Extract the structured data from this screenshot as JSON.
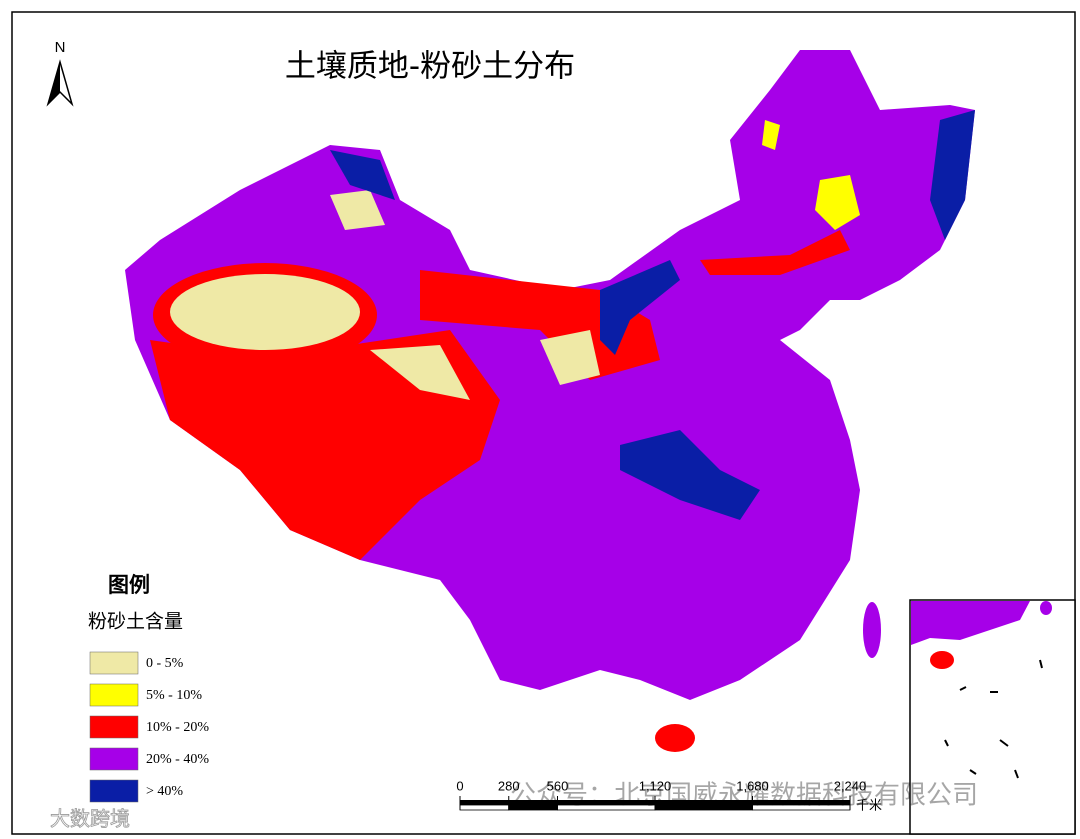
{
  "map": {
    "title": "土壤质地-粉砂土分布",
    "north_label": "N",
    "legend": {
      "title": "图例",
      "subtitle": "粉砂土含量",
      "items": [
        {
          "label": "0 - 5%",
          "color": "#efe9a6"
        },
        {
          "label": "5% - 10%",
          "color": "#ffff00"
        },
        {
          "label": "10% - 20%",
          "color": "#ff0000"
        },
        {
          "label": "20% - 40%",
          "color": "#a600e8"
        },
        {
          "label": "> 40%",
          "color": "#0a1ea6"
        }
      ]
    },
    "scale_bar": {
      "ticks": [
        0,
        280,
        560,
        {
          "value": 1120,
          "label": "1,120"
        },
        {
          "value": 1680,
          "label": "1,680"
        },
        {
          "value": 2240,
          "label": "2,240"
        }
      ],
      "unit": "千米"
    },
    "watermarks": [
      "公众号：北京国威永耀数据科技有限公司",
      "大数跨境"
    ]
  }
}
